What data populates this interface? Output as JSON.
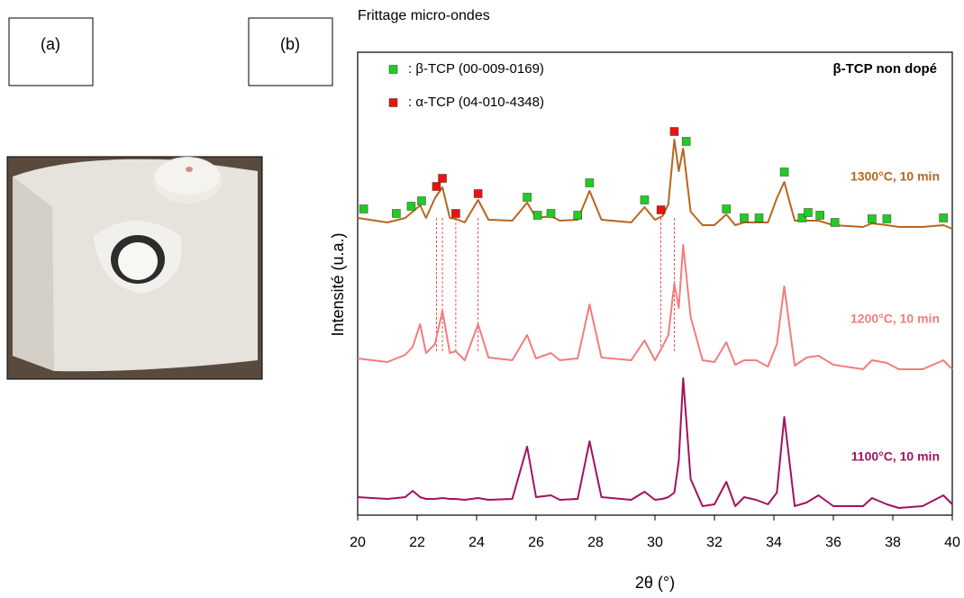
{
  "panel_labels": [
    "(a)",
    "(b)"
  ],
  "chart_data": {
    "type": "line",
    "title": "Frittage micro-ondes",
    "annotation": "β-TCP non dopé",
    "x_label": "2θ (°)",
    "y_label": "Intensité (u.a.)",
    "xlim": [
      20,
      40
    ],
    "xticks": [
      20,
      22,
      24,
      26,
      28,
      30,
      32,
      34,
      36,
      38,
      40
    ],
    "ylim": [
      0,
      512
    ],
    "x": [
      20,
      21.0,
      21.6,
      21.85,
      22.1,
      22.3,
      22.6,
      22.85,
      23.1,
      23.3,
      23.6,
      24.05,
      24.4,
      25.2,
      25.7,
      26.0,
      26.5,
      26.8,
      27.4,
      27.8,
      28.2,
      29.2,
      29.65,
      30.0,
      30.25,
      30.45,
      30.65,
      30.8,
      30.95,
      31.2,
      31.6,
      32.0,
      32.4,
      32.7,
      33.0,
      33.4,
      33.8,
      34.1,
      34.35,
      34.7,
      35.1,
      35.5,
      36.0,
      37.0,
      37.3,
      37.8,
      38.2,
      39.0,
      39.7,
      40
    ],
    "series": [
      {
        "name": "1300°C, 10 min",
        "color": "#b8651e",
        "values": [
          330,
          325,
          330,
          337,
          344,
          330,
          352,
          364,
          330,
          329,
          325,
          350,
          328,
          327,
          347,
          330,
          332,
          327,
          328,
          360,
          328,
          325,
          342,
          328,
          332,
          345,
          417,
          382,
          407,
          337,
          322,
          322,
          334,
          322,
          325,
          325,
          325,
          352,
          370,
          327,
          327,
          327,
          322,
          320,
          324,
          322,
          320,
          320,
          322,
          318
        ]
      },
      {
        "name": "1200°C, 10 min",
        "color": "#f47c7c",
        "values": [
          174,
          170,
          178,
          187,
          212,
          180,
          190,
          227,
          180,
          182,
          172,
          212,
          175,
          172,
          200,
          174,
          180,
          172,
          174,
          234,
          175,
          172,
          194,
          172,
          187,
          200,
          257,
          230,
          300,
          220,
          172,
          170,
          192,
          167,
          172,
          172,
          165,
          190,
          254,
          166,
          175,
          177,
          167,
          162,
          172,
          169,
          162,
          162,
          172,
          162
        ]
      },
      {
        "name": "1100°C, 10 min",
        "color": "#a0135f",
        "values": [
          20,
          18,
          20,
          27,
          20,
          18,
          18,
          19,
          18,
          18,
          17,
          19,
          17,
          18,
          76,
          20,
          22,
          17,
          18,
          82,
          20,
          17,
          26,
          17,
          18,
          20,
          25,
          60,
          152,
          40,
          10,
          12,
          37,
          10,
          20,
          17,
          12,
          25,
          109,
          10,
          14,
          22,
          10,
          10,
          19,
          12,
          8,
          10,
          22,
          12
        ]
      }
    ],
    "reference_markers": [
      {
        "name": ": β-TCP (00-009-0169)",
        "color": "#22cc22",
        "x": [
          20.2,
          21.3,
          21.8,
          22.15,
          25.7,
          26.05,
          26.5,
          27.4,
          27.8,
          29.65,
          31.05,
          32.4,
          33.0,
          33.5,
          34.35,
          34.95,
          35.15,
          35.55,
          36.05,
          37.3,
          37.8,
          39.7
        ],
        "values": [
          340,
          335,
          343,
          349,
          353,
          333,
          335,
          333,
          369,
          350,
          415,
          340,
          330,
          330,
          381,
          330,
          336,
          333,
          325,
          329,
          329,
          330
        ]
      },
      {
        "name": ": α-TCP (04-010-4348)",
        "color": "#ee1111",
        "x": [
          22.65,
          22.85,
          23.3,
          24.05,
          30.2,
          30.65
        ],
        "values": [
          365,
          374,
          335,
          357,
          339,
          426
        ]
      }
    ]
  }
}
